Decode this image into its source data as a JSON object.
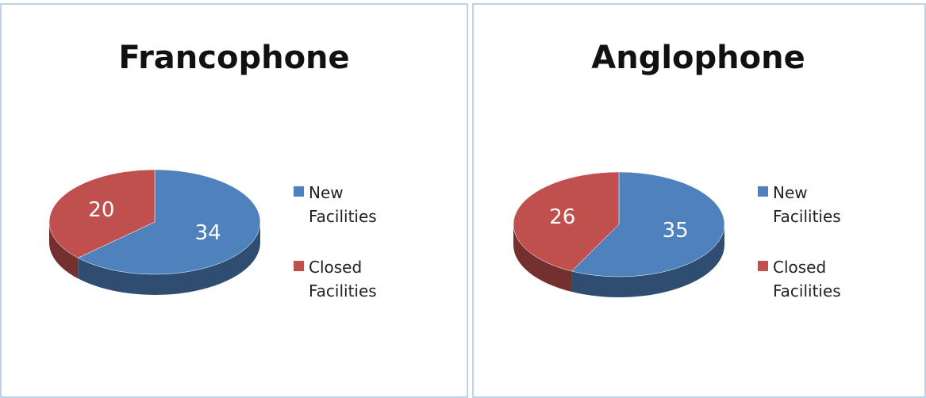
{
  "chart_data": [
    {
      "type": "pie",
      "title": "Francophone",
      "categories": [
        "New Facilities",
        "Closed Facilities"
      ],
      "values": [
        34,
        20
      ],
      "colors": [
        "#4f81bd",
        "#c0504d"
      ],
      "legend": "right"
    },
    {
      "type": "pie",
      "title": "Anglophone",
      "categories": [
        "New Facilities",
        "Closed Facilities"
      ],
      "values": [
        35,
        26
      ],
      "colors": [
        "#4f81bd",
        "#c0504d"
      ],
      "legend": "right"
    }
  ]
}
